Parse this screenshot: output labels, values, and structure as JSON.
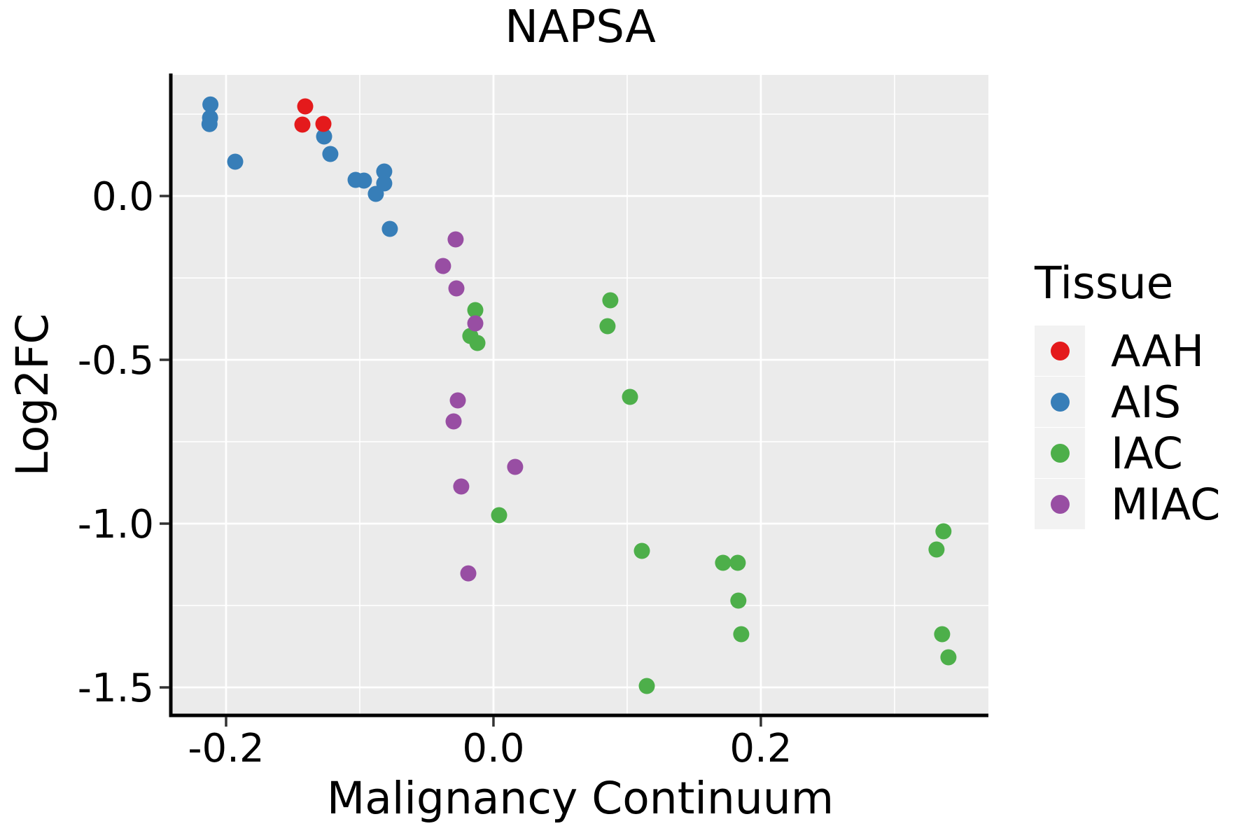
{
  "chart_data": {
    "type": "scatter",
    "title": "NAPSA",
    "xlabel": "Malignancy Continuum",
    "ylabel": "Log2FC",
    "xlim": [
      -0.2403,
      0.3702
    ],
    "ylim": [
      -1.5833,
      0.3697
    ],
    "grid": true,
    "x_axis": {
      "major_ticks": [
        -0.2,
        0.0,
        0.2
      ],
      "major_labels": [
        "-0.2",
        "0.0",
        "0.2"
      ],
      "minor_ticks": [
        -0.1,
        0.1,
        0.3
      ]
    },
    "y_axis": {
      "major_ticks": [
        0.0,
        -0.5,
        -1.0,
        -1.5
      ],
      "major_labels": [
        "0.0",
        "-0.5",
        "-1.0",
        "-1.5"
      ],
      "minor_ticks": [
        0.25,
        -0.25,
        -0.75,
        -1.25
      ]
    },
    "legend": {
      "title": "Tissue",
      "position": "right",
      "items": [
        {
          "label": "AAH",
          "color": "#E41A1C"
        },
        {
          "label": "AIS",
          "color": "#377EB8"
        },
        {
          "label": "IAC",
          "color": "#4DAF4A"
        },
        {
          "label": "MIAC",
          "color": "#984EA3"
        }
      ]
    },
    "series": [
      {
        "name": "AIS",
        "color": "#377EB8",
        "points": [
          [
            -0.2117,
            0.2793
          ],
          [
            -0.212,
            0.2387
          ],
          [
            -0.2124,
            0.2194
          ],
          [
            -0.1932,
            0.1047
          ],
          [
            -0.1267,
            0.1816
          ],
          [
            -0.122,
            0.1282
          ],
          [
            -0.1031,
            0.0491
          ],
          [
            -0.0969,
            0.047
          ],
          [
            -0.088,
            0.0064
          ],
          [
            -0.0817,
            0.0748
          ],
          [
            -0.0817,
            0.0385
          ],
          [
            -0.0775,
            -0.1004
          ]
        ]
      },
      {
        "name": "AAH",
        "color": "#E41A1C",
        "points": [
          [
            -0.1408,
            0.2735
          ],
          [
            -0.1429,
            0.2179
          ],
          [
            -0.1272,
            0.2201
          ]
        ]
      },
      {
        "name": "IAC",
        "color": "#4DAF4A",
        "points": [
          [
            -0.0136,
            -0.3483
          ],
          [
            -0.0173,
            -0.4274
          ],
          [
            -0.012,
            -0.4487
          ],
          [
            0.0874,
            -0.3184
          ],
          [
            0.0853,
            -0.3974
          ],
          [
            0.1021,
            -0.6132
          ],
          [
            0.0042,
            -0.9744
          ],
          [
            0.111,
            -1.0833
          ],
          [
            0.1717,
            -1.1197
          ],
          [
            0.1827,
            -1.1197
          ],
          [
            0.1832,
            -1.235
          ],
          [
            0.1853,
            -1.3376
          ],
          [
            0.1147,
            -1.4957
          ],
          [
            0.3366,
            -1.0235
          ],
          [
            0.3314,
            -1.0791
          ],
          [
            0.3356,
            -1.3376
          ],
          [
            0.3403,
            -1.4081
          ]
        ]
      },
      {
        "name": "MIAC",
        "color": "#984EA3",
        "points": [
          [
            -0.0283,
            -0.1325
          ],
          [
            -0.0377,
            -0.2137
          ],
          [
            -0.0277,
            -0.2821
          ],
          [
            -0.0136,
            -0.3889
          ],
          [
            -0.0267,
            -0.6239
          ],
          [
            -0.0298,
            -0.688
          ],
          [
            0.0162,
            -0.8269
          ],
          [
            -0.0241,
            -0.8868
          ],
          [
            -0.0188,
            -1.1518
          ]
        ]
      }
    ]
  },
  "style": {
    "panel_bg": "#EBEBEB",
    "grid_color": "#FFFFFF",
    "axis_color": "#000000",
    "tick_color": "#333333",
    "text_color": "#000000",
    "legend_key_bg": "#F2F2F2"
  }
}
